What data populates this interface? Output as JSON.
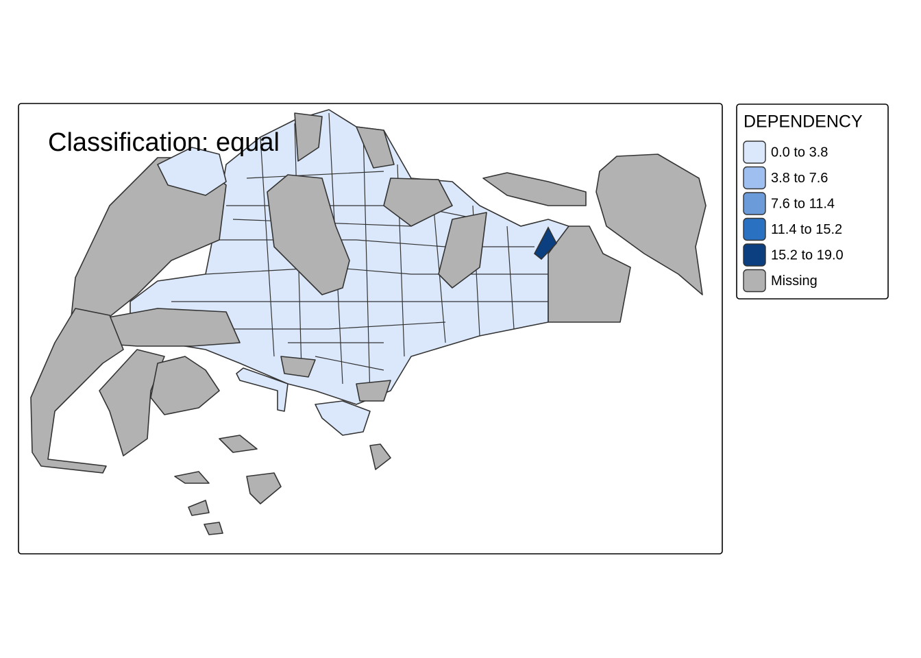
{
  "map": {
    "title": "Classification: equal"
  },
  "legend": {
    "title": "DEPENDENCY",
    "items": [
      {
        "label": "0.0 to 3.8",
        "color": "#dbe8fb"
      },
      {
        "label": "3.8 to 7.6",
        "color": "#9ebff0"
      },
      {
        "label": "7.6 to 11.4",
        "color": "#6b9bd9"
      },
      {
        "label": "11.4 to 15.2",
        "color": "#2a72c1"
      },
      {
        "label": "15.2 to 19.0",
        "color": "#0b3f80"
      },
      {
        "label": "Missing",
        "color": "#b2b2b2"
      }
    ]
  }
}
